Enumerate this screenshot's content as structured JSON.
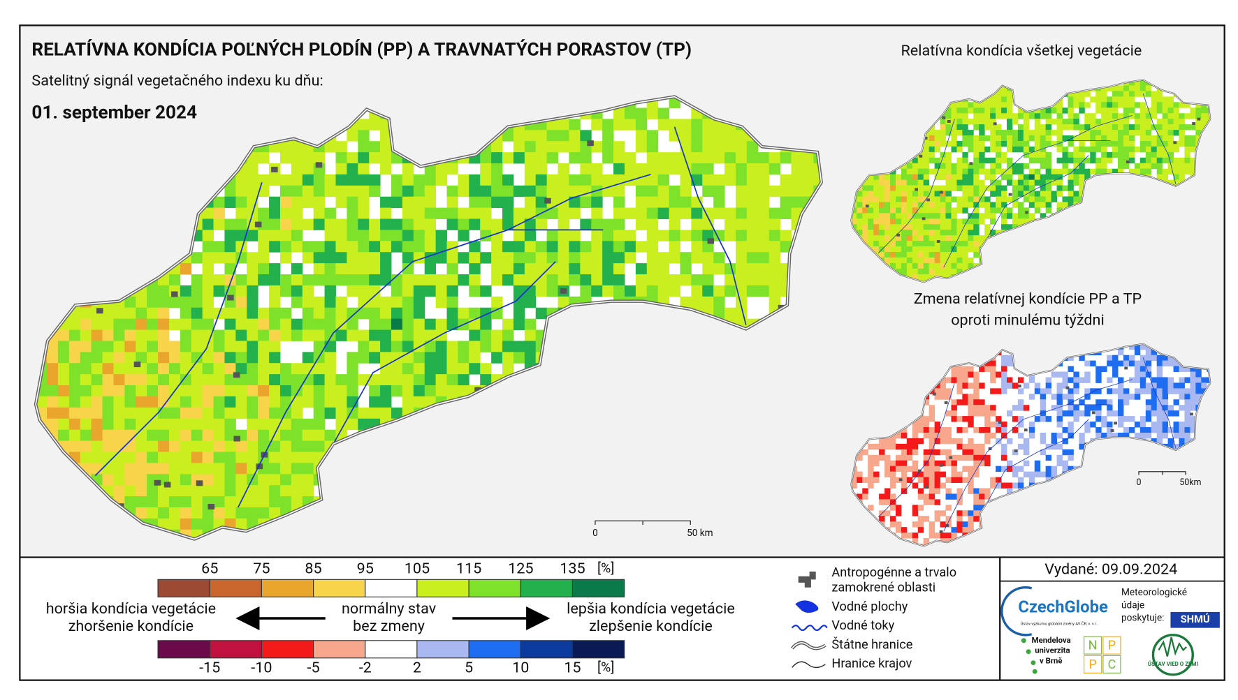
{
  "header": {
    "title": "RELATÍVNA KONDÍCIA POĽNÝCH PLODÍN (PP) A TRAVNATÝCH PORASTOV (TP)",
    "subtitle": "Satelitný signál vegetačného indexu ku dňu:",
    "date": "01. september 2024"
  },
  "maps": {
    "overall_title": "Relatívna kondícia všetkej vegetácie",
    "change_title": [
      "Zmena relatívnej kondície PP a TP",
      "oproti minulému týždni"
    ]
  },
  "scalebars": {
    "main": [
      "0",
      "50 km"
    ],
    "small": [
      "0",
      "50km"
    ]
  },
  "legend": {
    "condition": {
      "ticks": [
        65,
        75,
        85,
        95,
        105,
        115,
        125,
        135
      ],
      "unit": "[%]",
      "colors": [
        "#9c4a33",
        "#c8662e",
        "#e9a52c",
        "#f7d44a",
        "#ffffff",
        "#c9f01e",
        "#7fe22a",
        "#22b14c",
        "#0a7a4a"
      ]
    },
    "change": {
      "ticks": [
        -15,
        -10,
        -5,
        -2,
        2,
        5,
        10,
        15
      ],
      "unit": "[%]",
      "colors": [
        "#6b0a4a",
        "#c0123f",
        "#f41a1a",
        "#f7a78c",
        "#ffffff",
        "#a9b8f0",
        "#1e6cf0",
        "#0a3a9c",
        "#0a1a55"
      ]
    },
    "worse": [
      "horšia kondícia vegetácie",
      "zhoršenie kondície"
    ],
    "normal": [
      "normálny stav",
      "bez zmeny"
    ],
    "better": [
      "lepšia kondícia vegetácie",
      "zlepšenie kondície"
    ]
  },
  "map_legend": [
    [
      "Antropogénne a trvalo",
      "zamokrené oblasti"
    ],
    [
      "Vodné plochy"
    ],
    [
      "Vodné toky"
    ],
    [
      "Štátne hranice"
    ],
    [
      "Hranice krajov"
    ]
  ],
  "issued": "Vydané: 09.09.2024",
  "logos": {
    "czechglobe": "CzechGlobe",
    "czechglobe_sub": "Ústav výzkumu globální změny AV ČR, v. v. i.",
    "meteo": [
      "Meteorologické",
      "údaje",
      "poskytuje:"
    ],
    "shmu": "SHMÚ",
    "mendel": [
      "Mendelova",
      "univerzita",
      "v Brně"
    ],
    "nppc": [
      "N",
      "P",
      "P",
      "C"
    ],
    "uvz": "ÚSTAV VIED O ZEMI"
  }
}
